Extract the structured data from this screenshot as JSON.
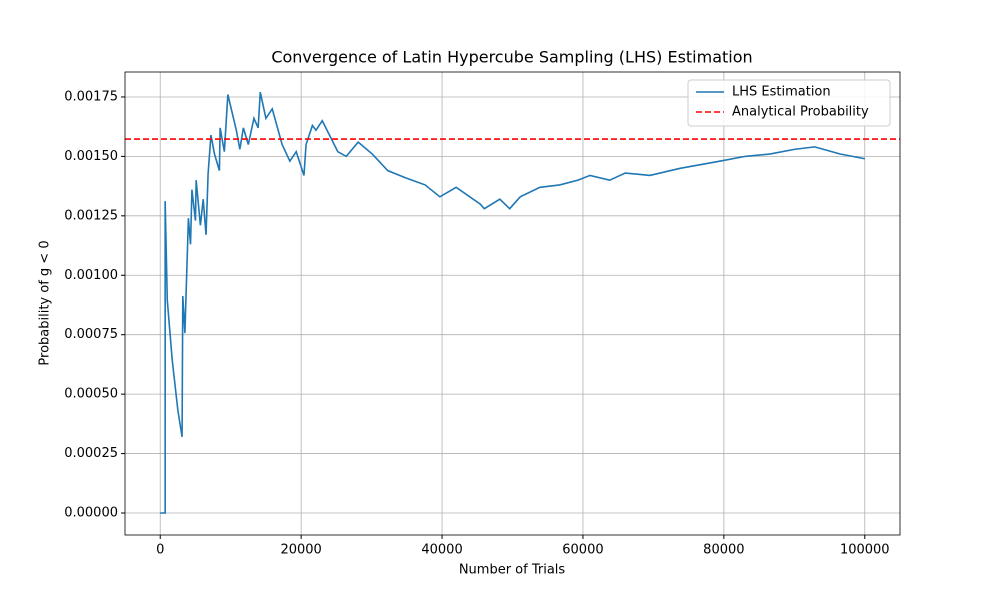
{
  "chart_data": {
    "type": "line",
    "title": "Convergence of Latin Hypercube Sampling (LHS) Estimation",
    "xlabel": "Number of Trials",
    "ylabel": "Probability of g < 0",
    "xlim": [
      -5000,
      105000
    ],
    "ylim": [
      -9.25e-05,
      0.001855
    ],
    "xticks": [
      0,
      20000,
      40000,
      60000,
      80000,
      100000
    ],
    "yticks": [
      {
        "value": 0,
        "label": "0.00000"
      },
      {
        "value": 0.00025,
        "label": "0.00025"
      },
      {
        "value": 0.0005,
        "label": "0.00050"
      },
      {
        "value": 0.00075,
        "label": "0.00075"
      },
      {
        "value": 0.001,
        "label": "0.00100"
      },
      {
        "value": 0.00125,
        "label": "0.00125"
      },
      {
        "value": 0.0015,
        "label": "0.00150"
      },
      {
        "value": 0.00175,
        "label": "0.00175"
      }
    ],
    "grid": true,
    "legend": "upper right",
    "x": [
      0,
      700,
      700,
      1000,
      1700,
      2500,
      3100,
      3200,
      3500,
      4000,
      4300,
      4500,
      5000,
      5100,
      5700,
      6100,
      6500,
      6800,
      7200,
      7700,
      8400,
      8500,
      9100,
      9600,
      10800,
      11300,
      11800,
      12500,
      13300,
      13900,
      14200,
      15000,
      15900,
      17300,
      18400,
      19300,
      20400,
      20700,
      21600,
      22100,
      23000,
      25200,
      26400,
      28100,
      30100,
      32300,
      34800,
      37600,
      39700,
      42000,
      45400,
      46000,
      48200,
      49600,
      51100,
      53900,
      56700,
      59300,
      61000,
      63800,
      66000,
      69500,
      73800,
      79400,
      83000,
      86500,
      90100,
      92900,
      96500,
      100000
    ],
    "series": [
      {
        "name": "LHS Estimation",
        "color": "#1f77b4",
        "values": [
          0,
          0,
          0.001312,
          0.000896,
          0.000644,
          0.000433,
          0.00032,
          0.000913,
          0.000757,
          0.00124,
          0.00113,
          0.00136,
          0.00123,
          0.0014,
          0.00121,
          0.00132,
          0.00117,
          0.00143,
          0.00159,
          0.00151,
          0.00144,
          0.00162,
          0.00152,
          0.00176,
          0.00161,
          0.00153,
          0.00162,
          0.00155,
          0.00166,
          0.00162,
          0.00177,
          0.00166,
          0.0017,
          0.00155,
          0.00148,
          0.00152,
          0.00142,
          0.00155,
          0.00163,
          0.00161,
          0.00165,
          0.00152,
          0.0015,
          0.00156,
          0.00151,
          0.00144,
          0.00141,
          0.00138,
          0.00133,
          0.00137,
          0.0013,
          0.00128,
          0.00132,
          0.00128,
          0.00133,
          0.00137,
          0.00138,
          0.0014,
          0.00142,
          0.0014,
          0.00143,
          0.00142,
          0.00145,
          0.00148,
          0.0015,
          0.00151,
          0.00153,
          0.00154,
          0.00151,
          0.00149
        ]
      },
      {
        "name": "Analytical Probability",
        "color": "#ff0000",
        "dash": true,
        "hline": 0.001573
      }
    ]
  }
}
